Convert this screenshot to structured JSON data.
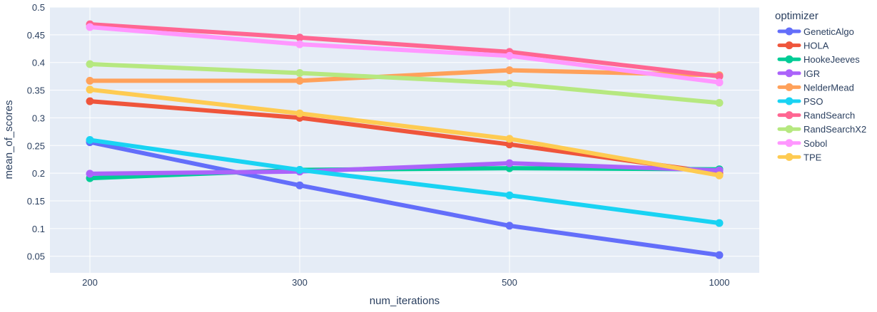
{
  "chart_data": {
    "type": "line",
    "xlabel": "num_iterations",
    "ylabel": "mean_of_scores",
    "x": [
      200,
      300,
      500,
      1000
    ],
    "x_tick_labels": [
      "200",
      "300",
      "500",
      "1000"
    ],
    "x_scale": "categorical",
    "ylim": [
      0.02,
      0.5
    ],
    "y_ticks": [
      0.05,
      0.1,
      0.15,
      0.2,
      0.25,
      0.3,
      0.35,
      0.4,
      0.45,
      0.5
    ],
    "y_tick_labels": [
      "0.05",
      "0.1",
      "0.15",
      "0.2",
      "0.25",
      "0.3",
      "0.35",
      "0.4",
      "0.45",
      "0.5"
    ],
    "grid": true,
    "legend_title": "optimizer",
    "legend_position": "right",
    "series": [
      {
        "name": "GeneticAlgo",
        "color": "#636efa",
        "values": [
          0.256,
          0.178,
          0.105,
          0.052
        ]
      },
      {
        "name": "HOLA",
        "color": "#ef553b",
        "values": [
          0.33,
          0.3,
          0.252,
          0.2
        ]
      },
      {
        "name": "HookeJeeves",
        "color": "#00cc96",
        "values": [
          0.191,
          0.206,
          0.209,
          0.207
        ]
      },
      {
        "name": "IGR",
        "color": "#ab63fa",
        "values": [
          0.199,
          0.203,
          0.218,
          0.205
        ]
      },
      {
        "name": "NelderMead",
        "color": "#ffa15a",
        "values": [
          0.367,
          0.367,
          0.386,
          0.377
        ]
      },
      {
        "name": "PSO",
        "color": "#19d3f3",
        "values": [
          0.26,
          0.206,
          0.16,
          0.11
        ]
      },
      {
        "name": "RandSearch",
        "color": "#ff6692",
        "values": [
          0.469,
          0.445,
          0.419,
          0.375
        ]
      },
      {
        "name": "RandSearchX2",
        "color": "#b6e880",
        "values": [
          0.397,
          0.381,
          0.362,
          0.327
        ]
      },
      {
        "name": "Sobol",
        "color": "#ff97ff",
        "values": [
          0.464,
          0.433,
          0.412,
          0.364
        ]
      },
      {
        "name": "TPE",
        "color": "#fecb52",
        "values": [
          0.351,
          0.308,
          0.262,
          0.196
        ]
      }
    ]
  }
}
